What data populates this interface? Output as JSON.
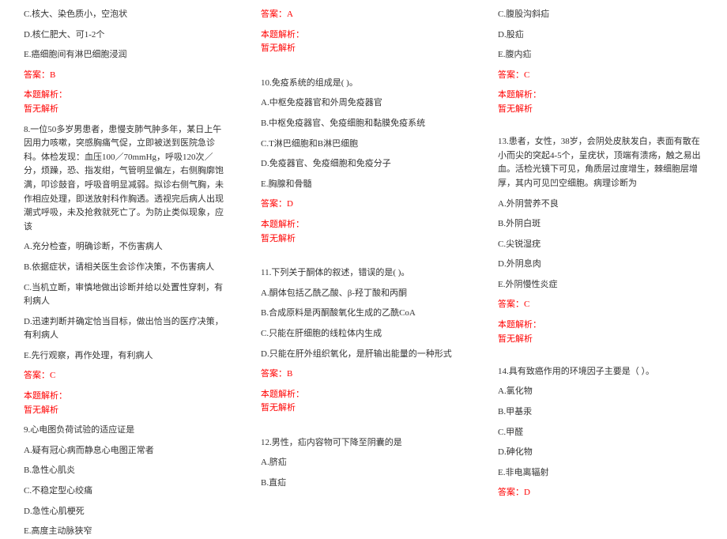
{
  "col1": {
    "opt7c": "C.核大、染色质小，空泡状",
    "opt7d": "D.核仁肥大、可1-2个",
    "opt7e": "E.癌细胞间有淋巴细胞浸润",
    "ans7": "答案：B",
    "exp7label": "本题解析：",
    "exp7": "暂无解析",
    "q8": "8.一位50多岁男患者，患慢支肺气肿多年，某日上午因用力咳嗽，突感胸痛气促，立即被送到医院急诊科。体检发现：血压100／70mmHg，呼吸120次／分，烦躁，恐、指发绀，气管明显偏左，右侧胸廓饱满，叩诊鼓音，呼吸音明显减弱。拟诊右侧气胸，未作相应处理，即送放射科作胸透。透视完后病人出现潮式呼吸，未及抢救就死亡了。为防止类似现象，应该",
    "opt8a": "A.充分检查，明确诊断，不伤害病人",
    "opt8b": "B.依据症状，请相关医生会诊作决策，不伤害病人",
    "opt8c": "C.当机立断，审慎地做出诊断并给以处置性穿刺，有利病人",
    "opt8d": "D.迅速判断并确定恰当目标，做出恰当的医疗决策，有利病人",
    "opt8e": "E.先行观察，再作处理，有利病人",
    "ans8": "答案：C",
    "exp8label": "本题解析：",
    "exp8": "暂无解析",
    "q9": "9.心电图负荷试验的适应证是",
    "opt9a": "A.疑有冠心病而静息心电图正常者",
    "opt9b": "B.急性心肌炎",
    "opt9c": "C.不稳定型心绞痛",
    "opt9d": "D.急性心肌梗死",
    "opt9e": "E.高度主动脉狭窄"
  },
  "col2": {
    "ans9": "答案：A",
    "exp9label": "本题解析：",
    "exp9": "暂无解析",
    "q10": "10.免疫系统的组成是( )。",
    "opt10a": "A.中枢免疫器官和外周免疫器官",
    "opt10b": "B.中枢免疫器官、免疫细胞和黏膜免疫系统",
    "opt10c": "C.T淋巴细胞和B淋巴细胞",
    "opt10d": "D.免疫器官、免疫细胞和免疫分子",
    "opt10e": "E.胸腺和骨髓",
    "ans10": "答案：D",
    "exp10label": "本题解析：",
    "exp10": "暂无解析",
    "q11": "11.下列关于酮体的叙述，错误的是( )。",
    "opt11a": "A.酮体包括乙酰乙酸、β-羟丁酸和丙酮",
    "opt11b": "B.合成原料是丙酮酸氧化生成的乙酰CoA",
    "opt11c": "C.只能在肝细胞的线粒体内生成",
    "opt11d": "D.只能在肝外组织氧化，是肝输出能量的一种形式",
    "ans11": "答案：B",
    "exp11label": "本题解析：",
    "exp11": "暂无解析",
    "q12": "12.男性，疝内容物可下降至阴囊的是",
    "opt12a": "A.脐疝",
    "opt12b": "B.直疝"
  },
  "col3": {
    "opt12c": "C.腹股沟斜疝",
    "opt12d": "D.股疝",
    "opt12e": "E.腹内疝",
    "ans12": "答案：C",
    "exp12label": "本题解析：",
    "exp12": "暂无解析",
    "q13": "13.患者，女性，38岁，会阴处皮肤发白，表面有散在小而尖的突起4-5个，呈疣状，顶端有溃疡，触之易出血。活检光镜下可见，角质层过度增生，棘细胞层增厚，其内可见凹空细胞。病理诊断为",
    "opt13a": "A.外阴营养不良",
    "opt13b": "B.外阴白斑",
    "opt13c": "C.尖锐湿疣",
    "opt13d": "D.外阴息肉",
    "opt13e": "E.外阴慢性炎症",
    "ans13": "答案：C",
    "exp13label": "本题解析：",
    "exp13": "暂无解析",
    "q14": "14.具有致癌作用的环境因子主要是（ ）。",
    "opt14a": "A.氯化物",
    "opt14b": "B.甲基汞",
    "opt14c": "C.甲醛",
    "opt14d": "D.砷化物",
    "opt14e": "E.非电离辐射",
    "ans14": "答案：D"
  }
}
